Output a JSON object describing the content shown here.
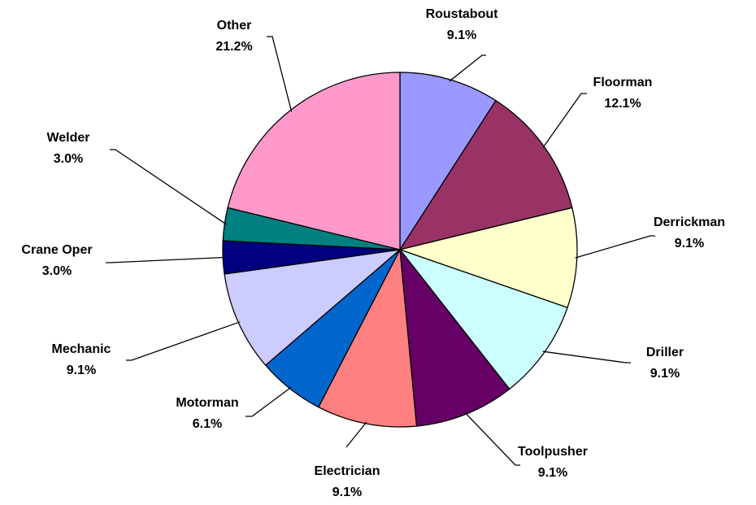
{
  "chart_data": {
    "type": "pie",
    "categories": [
      "Roustabout",
      "Floorman",
      "Derrickman",
      "Driller",
      "Toolpusher",
      "Electrician",
      "Motorman",
      "Mechanic",
      "Crane Oper",
      "Welder",
      "Other"
    ],
    "values": [
      9.1,
      12.1,
      9.1,
      9.1,
      9.1,
      9.1,
      6.1,
      9.1,
      3.0,
      3.0,
      21.2
    ],
    "value_labels": [
      "9.1%",
      "12.1%",
      "9.1%",
      "9.1%",
      "9.1%",
      "9.1%",
      "6.1%",
      "9.1%",
      "3.0%",
      "3.0%",
      "21.2%"
    ],
    "colors": [
      "#9999ff",
      "#993366",
      "#ffffcc",
      "#ccffff",
      "#660066",
      "#ff8080",
      "#0066cc",
      "#ccccff",
      "#000080",
      "#008080",
      "#ff99cc"
    ]
  }
}
